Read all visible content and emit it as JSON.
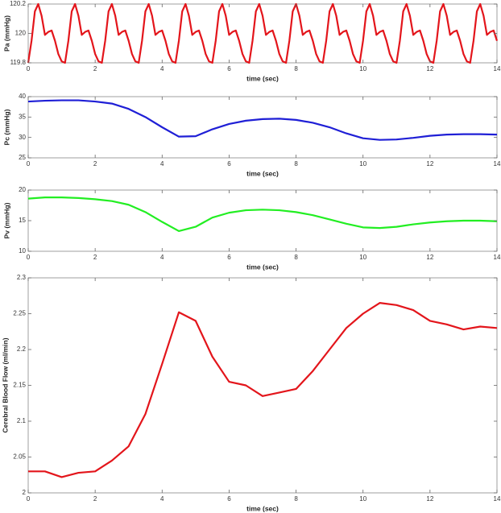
{
  "chart_data": [
    {
      "type": "line",
      "xlabel": "time (sec)",
      "ylabel": "Pa (mmHg)",
      "color": "#e3151b",
      "xlim": [
        0,
        14
      ],
      "ylim": [
        119.8,
        120.2
      ],
      "xticks": [
        0,
        2,
        4,
        6,
        8,
        10,
        12,
        14
      ],
      "yticks": [
        119.8,
        120,
        120.2
      ],
      "x": [
        0,
        0.1,
        0.2,
        0.3,
        0.4,
        0.5,
        0.6,
        0.7,
        0.8,
        0.9,
        1,
        1.1,
        1.2,
        1.3,
        1.4,
        1.5,
        1.6,
        1.7,
        1.8,
        1.9,
        2,
        2.1,
        2.2,
        2.3,
        2.4,
        2.5,
        2.6,
        2.7,
        2.8,
        2.9,
        3,
        3.1,
        3.2,
        3.3,
        3.4,
        3.5,
        3.6,
        3.7,
        3.8,
        3.9,
        4,
        4.1,
        4.2,
        4.3,
        4.4,
        4.5,
        4.6,
        4.7,
        4.8,
        4.9,
        5,
        5.1,
        5.2,
        5.3,
        5.4,
        5.5,
        5.6,
        5.7,
        5.8,
        5.9,
        6,
        6.1,
        6.2,
        6.3,
        6.4,
        6.5,
        6.6,
        6.7,
        6.8,
        6.9,
        7,
        7.1,
        7.2,
        7.3,
        7.4,
        7.5,
        7.6,
        7.7,
        7.8,
        7.9,
        8,
        8.1,
        8.2,
        8.3,
        8.4,
        8.5,
        8.6,
        8.7,
        8.8,
        8.9,
        9,
        9.1,
        9.2,
        9.3,
        9.4,
        9.5,
        9.6,
        9.7,
        9.8,
        9.9,
        10,
        10.1,
        10.2,
        10.3,
        10.4,
        10.5,
        10.6,
        10.7,
        10.8,
        10.9,
        11,
        11.1,
        11.2,
        11.3,
        11.4,
        11.5,
        11.6,
        11.7,
        11.8,
        11.9,
        12,
        12.1,
        12.2,
        12.3,
        12.4,
        12.5,
        12.6,
        12.7,
        12.8,
        12.9,
        13,
        13.1,
        13.2,
        13.3,
        13.4,
        13.5,
        13.6,
        13.7,
        13.8,
        13.9,
        14
      ],
      "values": [
        119.8,
        119.95,
        120.15,
        120.2,
        120.12,
        119.99,
        120.01,
        120.02,
        119.95,
        119.86,
        119.81,
        119.8,
        119.95,
        120.15,
        120.2,
        120.12,
        119.99,
        120.01,
        120.02,
        119.95,
        119.86,
        119.81,
        119.8,
        119.95,
        120.15,
        120.2,
        120.12,
        119.99,
        120.01,
        120.02,
        119.95,
        119.86,
        119.81,
        119.8,
        119.95,
        120.15,
        120.2,
        120.12,
        119.99,
        120.01,
        120.02,
        119.95,
        119.86,
        119.81,
        119.8,
        119.95,
        120.15,
        120.2,
        120.12,
        119.99,
        120.01,
        120.02,
        119.95,
        119.86,
        119.81,
        119.8,
        119.95,
        120.15,
        120.2,
        120.12,
        119.99,
        120.01,
        120.02,
        119.95,
        119.86,
        119.81,
        119.8,
        119.95,
        120.15,
        120.2,
        120.12,
        119.99,
        120.01,
        120.02,
        119.95,
        119.86,
        119.81,
        119.8,
        119.95,
        120.15,
        120.2,
        120.12,
        119.99,
        120.01,
        120.02,
        119.95,
        119.86,
        119.81,
        119.8,
        119.95,
        120.15,
        120.2,
        120.12,
        119.99,
        120.01,
        120.02,
        119.95,
        119.86,
        119.81,
        119.8,
        119.95,
        120.15,
        120.2,
        120.12,
        119.99,
        120.01,
        120.02,
        119.95,
        119.86,
        119.81,
        119.8,
        119.95,
        120.15,
        120.2,
        120.12,
        119.99,
        120.01,
        120.02,
        119.95,
        119.86,
        119.81,
        119.8,
        119.95,
        120.15,
        120.2,
        120.12,
        119.99,
        120.01,
        120.02,
        119.95,
        119.86,
        119.81,
        119.8,
        119.95,
        120.15,
        120.2,
        120.12,
        119.99,
        120.01,
        120.02,
        119.95
      ]
    },
    {
      "type": "line",
      "xlabel": "time (sec)",
      "ylabel": "Pc (mmHg)",
      "color": "#1f1fd6",
      "xlim": [
        0,
        14
      ],
      "ylim": [
        25,
        40
      ],
      "xticks": [
        0,
        2,
        4,
        6,
        8,
        10,
        12,
        14
      ],
      "yticks": [
        25,
        30,
        35,
        40
      ],
      "x": [
        0,
        0.5,
        1,
        1.5,
        2,
        2.5,
        3,
        3.5,
        4,
        4.5,
        5,
        5.5,
        6,
        6.5,
        7,
        7.5,
        8,
        8.5,
        9,
        9.5,
        10,
        10.5,
        11,
        11.5,
        12,
        12.5,
        13,
        13.5,
        14
      ],
      "values": [
        38.8,
        39,
        39.1,
        39.1,
        38.8,
        38.3,
        37,
        35,
        32.5,
        30.2,
        30.3,
        32,
        33.3,
        34.1,
        34.5,
        34.6,
        34.3,
        33.6,
        32.5,
        31,
        29.8,
        29.4,
        29.5,
        29.9,
        30.4,
        30.7,
        30.8,
        30.8,
        30.7
      ]
    },
    {
      "type": "line",
      "xlabel": "time (sec)",
      "ylabel": "Pv (mmHg)",
      "color": "#22ee22",
      "xlim": [
        0,
        14
      ],
      "ylim": [
        10,
        20
      ],
      "xticks": [
        0,
        2,
        4,
        6,
        8,
        10,
        12,
        14
      ],
      "yticks": [
        10,
        15,
        20
      ],
      "x": [
        0,
        0.5,
        1,
        1.5,
        2,
        2.5,
        3,
        3.5,
        4,
        4.5,
        5,
        5.5,
        6,
        6.5,
        7,
        7.5,
        8,
        8.5,
        9,
        9.5,
        10,
        10.5,
        11,
        11.5,
        12,
        12.5,
        13,
        13.5,
        14
      ],
      "values": [
        18.6,
        18.8,
        18.8,
        18.7,
        18.5,
        18.2,
        17.6,
        16.4,
        14.8,
        13.3,
        14,
        15.5,
        16.3,
        16.7,
        16.8,
        16.7,
        16.4,
        15.9,
        15.2,
        14.5,
        13.9,
        13.8,
        14,
        14.4,
        14.7,
        14.9,
        15,
        15,
        14.9
      ]
    },
    {
      "type": "line",
      "xlabel": "time (sec)",
      "ylabel": "Cerebral Blood Flow (ml/min)",
      "color": "#e3151b",
      "xlim": [
        0,
        14
      ],
      "ylim": [
        2,
        2.3
      ],
      "xticks": [
        0,
        2,
        4,
        6,
        8,
        10,
        12,
        14
      ],
      "yticks": [
        2,
        2.05,
        2.1,
        2.15,
        2.2,
        2.25,
        2.3
      ],
      "x": [
        0,
        0.5,
        1,
        1.5,
        2,
        2.5,
        3,
        3.5,
        4,
        4.5,
        5,
        5.5,
        6,
        6.5,
        7,
        7.5,
        8,
        8.5,
        9,
        9.5,
        10,
        10.5,
        11,
        11.5,
        12,
        12.5,
        13,
        13.5,
        14
      ],
      "values": [
        2.03,
        2.03,
        2.022,
        2.028,
        2.03,
        2.045,
        2.065,
        2.11,
        2.18,
        2.252,
        2.24,
        2.19,
        2.155,
        2.15,
        2.135,
        2.14,
        2.145,
        2.17,
        2.2,
        2.23,
        2.25,
        2.265,
        2.262,
        2.255,
        2.24,
        2.235,
        2.228,
        2.232,
        2.23
      ]
    }
  ]
}
